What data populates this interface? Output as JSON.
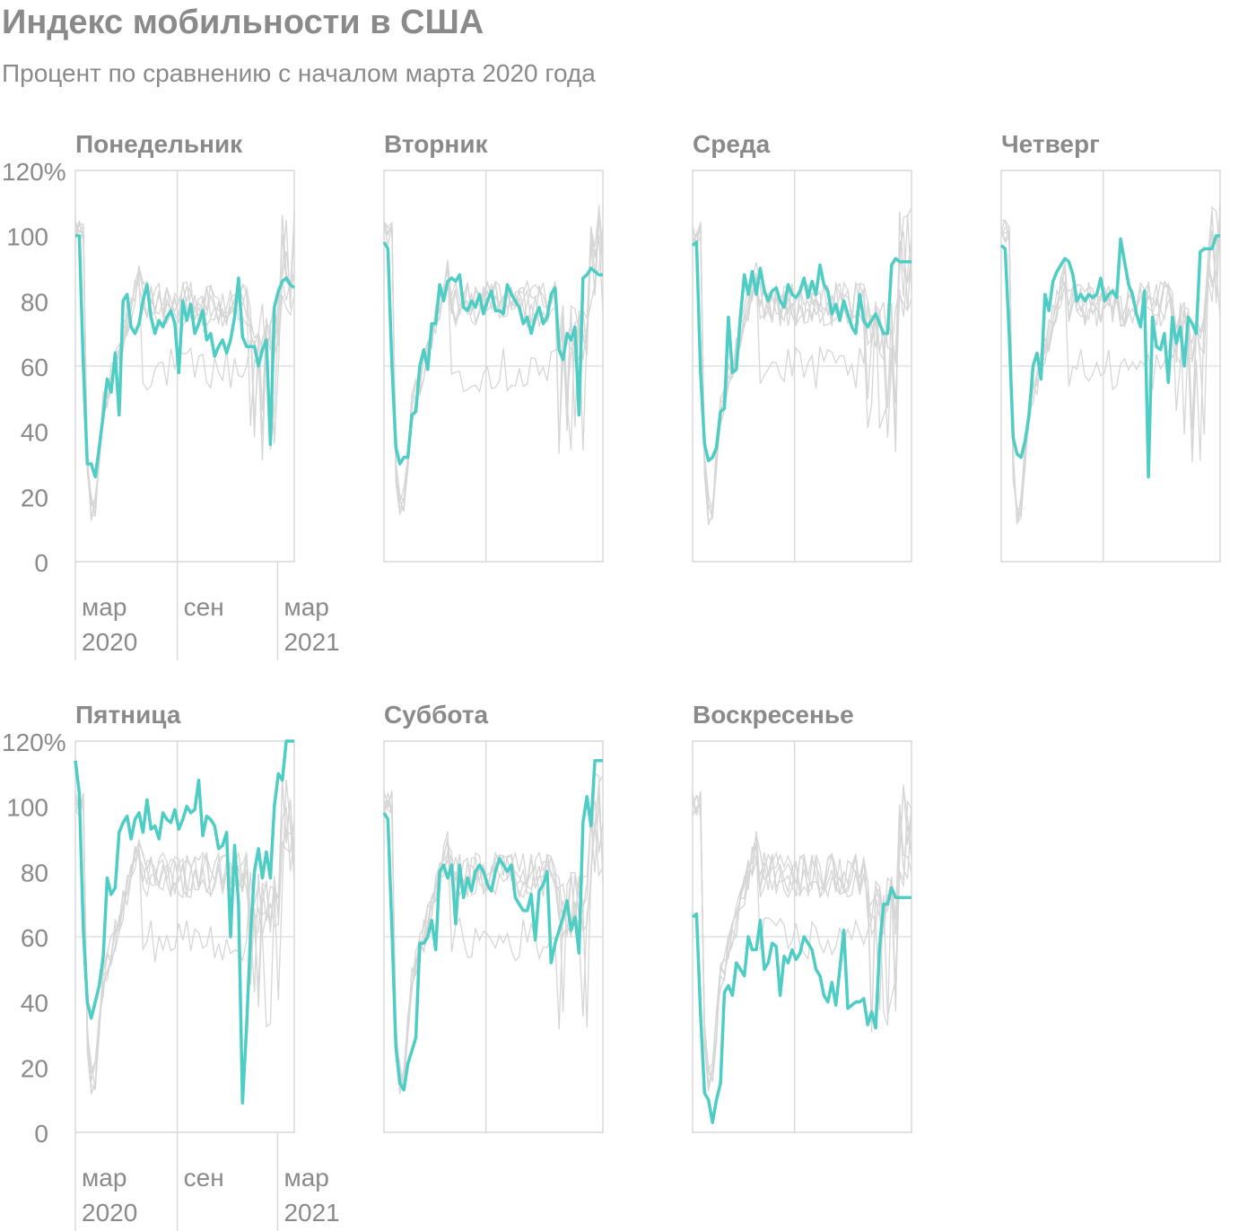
{
  "title": "Индекс мобильности в США",
  "subtitle": "Процент по сравнению с началом марта 2020 года",
  "colors": {
    "highlight": "#4ecdc4",
    "background_series": "#d6d6d6",
    "grid": "#d9d9d9",
    "text": "#8a8a8a"
  },
  "chart_data": {
    "type": "line",
    "y_unit": "%",
    "ylim": [
      0,
      120
    ],
    "y_ticks": [
      0,
      20,
      40,
      60,
      80,
      100,
      120
    ],
    "y_tick_labels": [
      "0",
      "20",
      "40",
      "60",
      "80",
      "100",
      "120%"
    ],
    "x_ticks": [
      {
        "month": "2020-03",
        "label": "мар",
        "year_label": "2020"
      },
      {
        "month": "2020-09",
        "label": "сен",
        "year_label": ""
      },
      {
        "month": "2021-03",
        "label": "мар",
        "year_label": "2021"
      }
    ],
    "x_range": [
      "2020-03-01",
      "2021-03-31"
    ],
    "panels": [
      {
        "name": "Понедельник",
        "values": [
          100,
          100,
          60,
          30,
          30,
          26,
          35,
          45,
          56,
          52,
          64,
          45,
          80,
          82,
          72,
          70,
          73,
          80,
          85,
          75,
          70,
          74,
          72,
          75,
          77,
          73,
          58,
          80,
          74,
          79,
          70,
          73,
          77,
          68,
          70,
          63,
          66,
          68,
          64,
          68,
          75,
          87,
          69,
          66,
          66,
          66,
          60,
          65,
          68,
          36,
          78,
          83,
          86,
          87,
          85,
          84
        ]
      },
      {
        "name": "Вторник",
        "values": [
          98,
          96,
          60,
          35,
          30,
          32,
          32,
          45,
          46,
          60,
          65,
          59,
          73,
          73,
          85,
          80,
          86,
          87,
          86,
          88,
          78,
          77,
          80,
          78,
          82,
          76,
          80,
          83,
          77,
          77,
          76,
          85,
          82,
          80,
          78,
          73,
          75,
          70,
          75,
          78,
          73,
          75,
          82,
          84,
          65,
          62,
          70,
          68,
          72,
          45,
          87,
          88,
          90,
          89,
          88,
          88
        ]
      },
      {
        "name": "Среда",
        "values": [
          97,
          98,
          58,
          36,
          31,
          32,
          35,
          46,
          47,
          75,
          58,
          59,
          75,
          88,
          82,
          89,
          82,
          90,
          83,
          80,
          83,
          84,
          80,
          78,
          85,
          82,
          81,
          83,
          87,
          81,
          86,
          82,
          91,
          85,
          83,
          76,
          79,
          74,
          80,
          76,
          72,
          70,
          82,
          74,
          72,
          74,
          76,
          73,
          70,
          70,
          91,
          93,
          92,
          92,
          92,
          92
        ]
      },
      {
        "name": "Четверг",
        "values": [
          97,
          96,
          70,
          38,
          33,
          32,
          37,
          45,
          60,
          64,
          56,
          82,
          77,
          86,
          89,
          91,
          93,
          92,
          88,
          80,
          82,
          80,
          82,
          81,
          82,
          87,
          80,
          82,
          83,
          81,
          99,
          92,
          85,
          82,
          76,
          72,
          83,
          26,
          75,
          66,
          65,
          70,
          55,
          75,
          67,
          72,
          60,
          75,
          73,
          70,
          95,
          96,
          96,
          96,
          100,
          100
        ]
      },
      {
        "name": "Пятница",
        "values": [
          114,
          104,
          62,
          40,
          35,
          40,
          45,
          54,
          78,
          73,
          75,
          92,
          95,
          97,
          90,
          96,
          98,
          92,
          102,
          93,
          94,
          90,
          98,
          96,
          95,
          99,
          93,
          96,
          100,
          98,
          99,
          108,
          91,
          97,
          96,
          94,
          87,
          88,
          92,
          60,
          88,
          70,
          9,
          32,
          60,
          80,
          87,
          78,
          86,
          78,
          100,
          110,
          108,
          120,
          120,
          120
        ]
      },
      {
        "name": "Суббота",
        "values": [
          98,
          96,
          62,
          26,
          15,
          13,
          21,
          25,
          29,
          58,
          58,
          60,
          65,
          56,
          80,
          82,
          78,
          82,
          64,
          82,
          72,
          78,
          74,
          80,
          82,
          80,
          76,
          74,
          80,
          84,
          82,
          80,
          82,
          72,
          70,
          68,
          68,
          73,
          59,
          74,
          76,
          80,
          52,
          58,
          62,
          66,
          71,
          62,
          66,
          55,
          95,
          103,
          94,
          114,
          114,
          114
        ]
      },
      {
        "name": "Воскресенье",
        "values": [
          66,
          67,
          36,
          12,
          10,
          3,
          10,
          15,
          43,
          45,
          42,
          52,
          50,
          48,
          60,
          56,
          56,
          65,
          50,
          52,
          58,
          57,
          42,
          54,
          52,
          56,
          53,
          55,
          60,
          58,
          56,
          50,
          48,
          42,
          40,
          46,
          39,
          50,
          62,
          38,
          39,
          40,
          40,
          41,
          33,
          37,
          32,
          57,
          70,
          70,
          75,
          72,
          72,
          72,
          72,
          72
        ]
      }
    ]
  }
}
